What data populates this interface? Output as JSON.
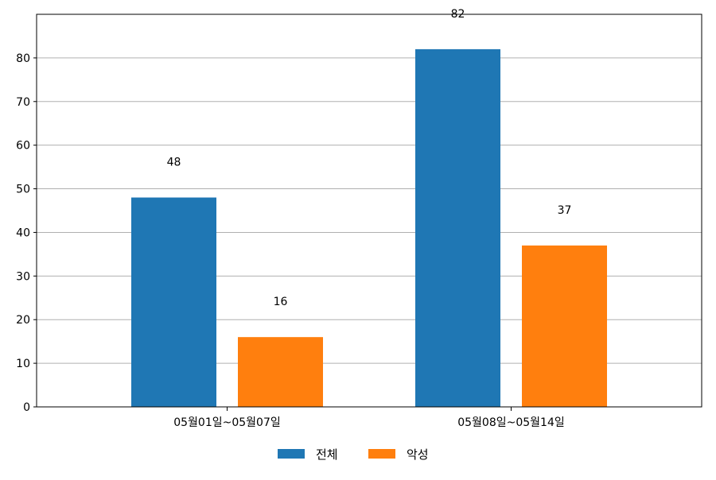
{
  "chart_data": {
    "type": "bar",
    "categories": [
      "05월01일~05월07일",
      "05월08일~05월14일"
    ],
    "series": [
      {
        "name": "전체",
        "values": [
          48,
          82
        ],
        "color": "#1f77b4"
      },
      {
        "name": "악성",
        "values": [
          16,
          37
        ],
        "color": "#ff7f0e"
      }
    ],
    "ylim": [
      0,
      90
    ],
    "yticks": [
      0,
      10,
      20,
      30,
      40,
      50,
      60,
      70,
      80
    ],
    "grid": "horizontal",
    "legend_position": "bottom-center",
    "data_labels": true
  }
}
